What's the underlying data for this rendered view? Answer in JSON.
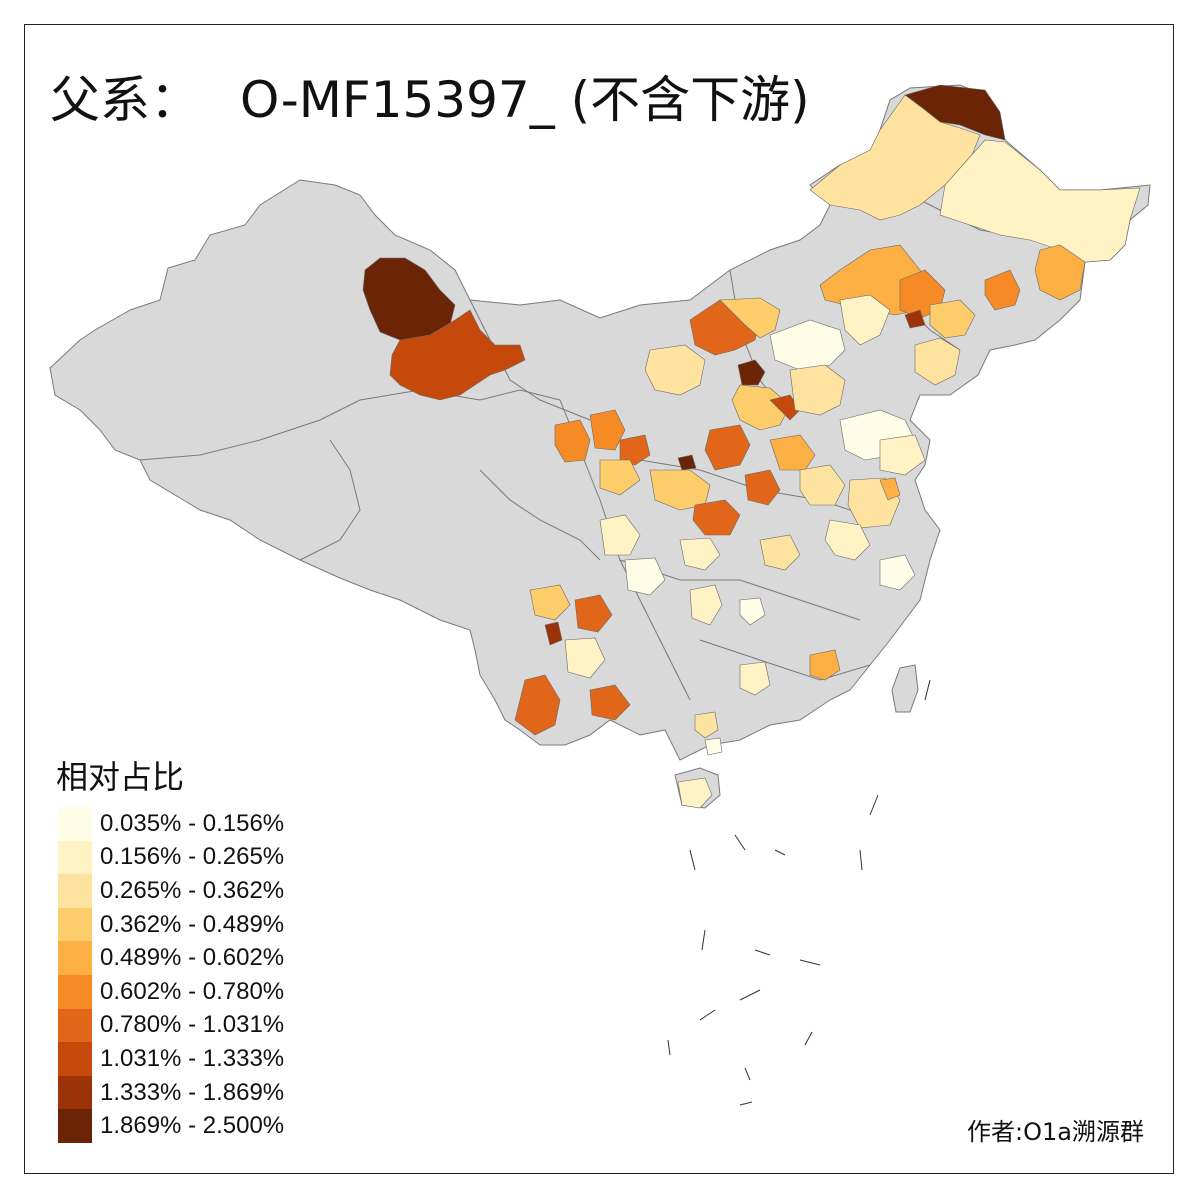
{
  "title": {
    "prefix": "父系：",
    "main": "O-MF15397_ (不含下游)"
  },
  "legend": {
    "title": "相对占比",
    "items": [
      {
        "label": "0.035% - 0.156%",
        "color": "#fffde8"
      },
      {
        "label": "0.156% - 0.265%",
        "color": "#fff2c4"
      },
      {
        "label": "0.265% - 0.362%",
        "color": "#fee3a0"
      },
      {
        "label": "0.362% - 0.489%",
        "color": "#fdcc6b"
      },
      {
        "label": "0.489% - 0.602%",
        "color": "#fcaf43"
      },
      {
        "label": "0.602% - 0.780%",
        "color": "#f68b25"
      },
      {
        "label": "0.780% - 1.031%",
        "color": "#e2661a"
      },
      {
        "label": "1.031% - 1.333%",
        "color": "#c4490a"
      },
      {
        "label": "1.333% - 1.869%",
        "color": "#9b3208"
      },
      {
        "label": "1.869% - 2.500%",
        "color": "#6b2506"
      }
    ]
  },
  "credit": "作者:O1a溯源群",
  "colors": {
    "no_data": "#d9d9d9",
    "border": "#555555"
  }
}
